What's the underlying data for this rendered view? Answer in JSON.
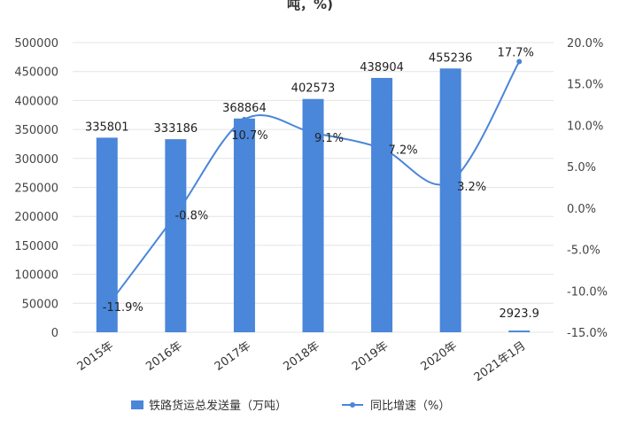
{
  "title": "吨，%)",
  "chart_data": {
    "type": "bar+line",
    "categories": [
      "2015年",
      "2016年",
      "2017年",
      "2018年",
      "2019年",
      "2020年",
      "2021年1月"
    ],
    "series": [
      {
        "name": "铁路货运总发送量（万吨）",
        "kind": "bar",
        "axis": "left",
        "color": "#4a86d9",
        "values": [
          335801,
          333186,
          368864,
          402573,
          438904,
          455236,
          2923.9
        ],
        "labels": [
          "335801",
          "333186",
          "368864",
          "402573",
          "438904",
          "455236",
          "2923.9"
        ]
      },
      {
        "name": "同比增速（%）",
        "kind": "line",
        "axis": "right",
        "color": "#4a86d9",
        "values": [
          -11.9,
          -0.8,
          10.7,
          9.1,
          7.2,
          3.2,
          17.7
        ],
        "labels": [
          "-11.9%",
          "-0.8%",
          "10.7%",
          "9.1%",
          "7.2%",
          "3.2%",
          "17.7%"
        ]
      }
    ],
    "yleft": {
      "ylim": [
        0,
        500000
      ],
      "ticks": [
        "0",
        "50000",
        "100000",
        "150000",
        "200000",
        "250000",
        "300000",
        "350000",
        "400000",
        "450000",
        "500000"
      ]
    },
    "yright": {
      "ylim": [
        -15,
        20
      ],
      "ticks": [
        "-15.0%",
        "-10.0%",
        "-5.0%",
        "0.0%",
        "5.0%",
        "10.0%",
        "15.0%",
        "20.0%"
      ]
    },
    "grid": true,
    "legend": "bottom"
  }
}
